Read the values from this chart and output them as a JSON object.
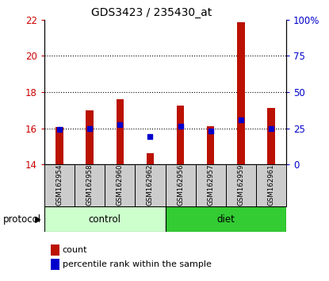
{
  "title": "GDS3423 / 235430_at",
  "samples": [
    "GSM162954",
    "GSM162958",
    "GSM162960",
    "GSM162962",
    "GSM162956",
    "GSM162957",
    "GSM162959",
    "GSM162961"
  ],
  "groups": [
    "control",
    "control",
    "control",
    "control",
    "diet",
    "diet",
    "diet",
    "diet"
  ],
  "bar_tops": [
    16.05,
    17.0,
    17.6,
    14.6,
    17.25,
    16.1,
    21.85,
    17.1
  ],
  "bar_bottom": 14.0,
  "percentile_values": [
    15.95,
    16.0,
    16.2,
    15.55,
    16.1,
    15.85,
    16.45,
    16.0
  ],
  "ylim": [
    14,
    22
  ],
  "y_ticks_left": [
    14,
    16,
    18,
    20,
    22
  ],
  "y_ticks_right": [
    0,
    25,
    50,
    75,
    100
  ],
  "ytick_labels_left": [
    "14",
    "16",
    "18",
    "20",
    "22"
  ],
  "ytick_labels_right": [
    "0",
    "25",
    "50",
    "75",
    "100%"
  ],
  "left_axis_color": "#cc0000",
  "right_axis_color": "#0000cc",
  "bar_color": "#bb1100",
  "percentile_color": "#0000cc",
  "control_color": "#ccffcc",
  "diet_color": "#33cc33",
  "label_bg_color": "#cccccc",
  "protocol_label": "protocol",
  "control_label": "control",
  "diet_label": "diet",
  "legend_count": "count",
  "legend_percentile": "percentile rank within the sample",
  "bar_width": 0.25
}
